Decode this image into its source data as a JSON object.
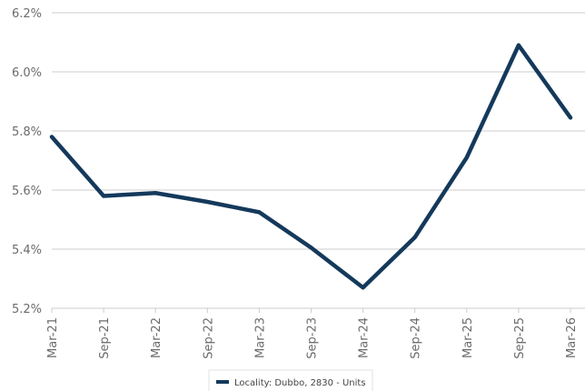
{
  "chart_data": {
    "type": "line",
    "x": [
      "Mar-21",
      "Sep-21",
      "Mar-22",
      "Sep-22",
      "Mar-23",
      "Sep-23",
      "Mar-24",
      "Sep-24",
      "Mar-25",
      "Sep-25",
      "Mar-26"
    ],
    "series": [
      {
        "name": "Locality: Dubbo, 2830 - Units",
        "values": [
          5.78,
          5.58,
          5.59,
          5.56,
          5.525,
          5.405,
          5.27,
          5.44,
          5.71,
          6.09,
          5.845
        ],
        "color": "#14395b"
      }
    ],
    "yticks": [
      "5.2%",
      "5.4%",
      "5.6%",
      "5.8%",
      "6.0%",
      "6.2%"
    ],
    "ytick_values": [
      5.2,
      5.4,
      5.6,
      5.8,
      6.0,
      6.2
    ],
    "ylim": [
      5.2,
      6.2
    ],
    "grid": "horizontal",
    "legend_position": "bottom-center",
    "grid_color": "#cccccc",
    "text_color": "#6b6b6b"
  }
}
